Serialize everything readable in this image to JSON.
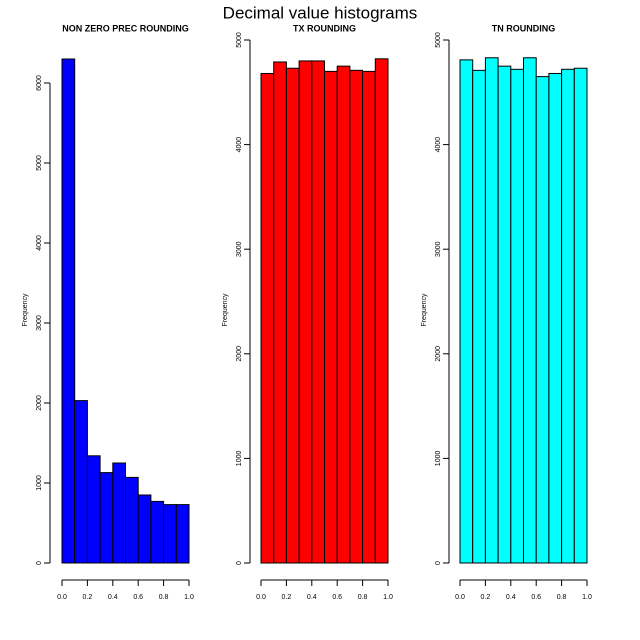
{
  "title": "Decimal value histograms",
  "chart_data": [
    {
      "type": "histogram",
      "title": "NON ZERO PREC ROUNDING",
      "ylabel": "Frequency",
      "color": "#0000ff",
      "bins": [
        0,
        0.1,
        0.2,
        0.3,
        0.4,
        0.5,
        0.6,
        0.7,
        0.8,
        0.9,
        1
      ],
      "values": [
        6300,
        2030,
        1340,
        1130,
        1250,
        1070,
        850,
        770,
        730,
        730
      ],
      "xlim": [
        0,
        1
      ],
      "xticks": [
        {
          "value": 0,
          "label": "0.0"
        },
        0.2,
        0.4,
        0.6,
        0.8,
        {
          "value": 1,
          "label": "1.0"
        }
      ],
      "ylim": [
        0,
        6300
      ],
      "yticks": [
        0,
        1000,
        2000,
        3000,
        4000,
        5000,
        6000
      ]
    },
    {
      "type": "histogram",
      "title": "TX ROUNDING",
      "ylabel": "Frequency",
      "color": "#ff0000",
      "bins": [
        0,
        0.1,
        0.2,
        0.3,
        0.4,
        0.5,
        0.6,
        0.7,
        0.8,
        0.9,
        1
      ],
      "values": [
        4680,
        4790,
        4730,
        4800,
        4800,
        4700,
        4750,
        4710,
        4700,
        4820
      ],
      "xlim": [
        0,
        1
      ],
      "xticks": [
        {
          "value": 0,
          "label": "0.0"
        },
        0.2,
        0.4,
        0.6,
        0.8,
        {
          "value": 1,
          "label": "1.0"
        }
      ],
      "ylim": [
        0,
        5000
      ],
      "yticks": [
        0,
        1000,
        2000,
        3000,
        4000,
        5000
      ]
    },
    {
      "type": "histogram",
      "title": "TN ROUNDING",
      "ylabel": "Frequency",
      "color": "#00ffff",
      "bins": [
        0,
        0.1,
        0.2,
        0.3,
        0.4,
        0.5,
        0.6,
        0.7,
        0.8,
        0.9,
        1
      ],
      "values": [
        4810,
        4710,
        4830,
        4750,
        4720,
        4830,
        4650,
        4680,
        4720,
        4730
      ],
      "xlim": [
        0,
        1
      ],
      "xticks": [
        {
          "value": 0,
          "label": "0.0"
        },
        0.2,
        0.4,
        0.6,
        0.8,
        {
          "value": 1,
          "label": "1.0"
        }
      ],
      "ylim": [
        0,
        5000
      ],
      "yticks": [
        0,
        1000,
        2000,
        3000,
        4000,
        5000
      ]
    }
  ]
}
